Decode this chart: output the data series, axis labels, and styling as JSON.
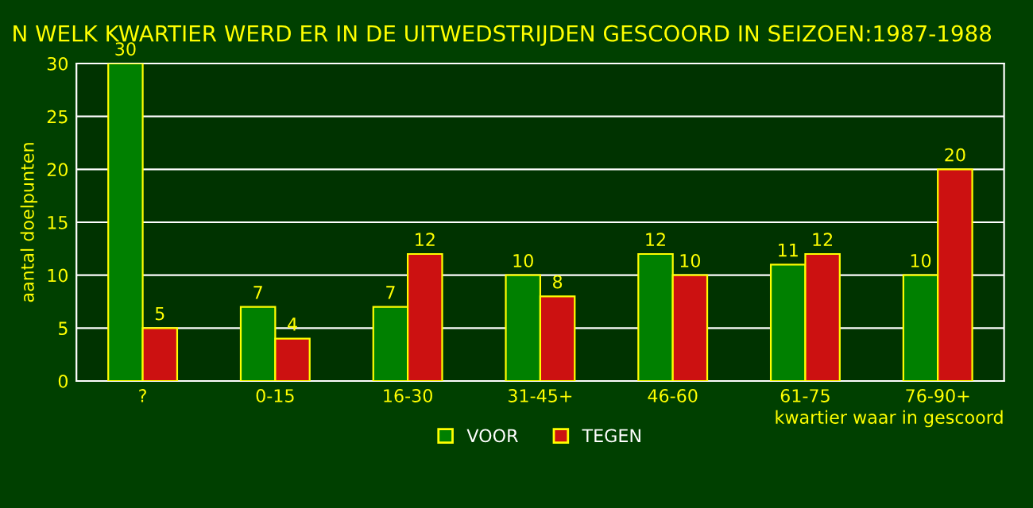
{
  "chart_data": {
    "type": "bar",
    "title": "N WELK KWARTIER WERD ER IN DE UITWEDSTRIJDEN GESCOORD IN SEIZOEN:1987-1988",
    "xlabel": "kwartier waar in gescoord",
    "ylabel": "aantal doelpunten",
    "categories": [
      "?",
      "0-15",
      "16-30",
      "31-45+",
      "46-60",
      "61-75",
      "76-90+"
    ],
    "series": [
      {
        "name": "VOOR",
        "color": "#008000",
        "values": [
          30,
          7,
          7,
          10,
          12,
          11,
          10
        ]
      },
      {
        "name": "TEGEN",
        "color": "#cc1111",
        "values": [
          5,
          4,
          12,
          8,
          10,
          12,
          20
        ]
      }
    ],
    "ylim": [
      0,
      30
    ],
    "yticks": [
      0,
      5,
      10,
      15,
      20,
      25,
      30
    ],
    "grid": "y",
    "legend": "bottom",
    "data_labels": true
  }
}
